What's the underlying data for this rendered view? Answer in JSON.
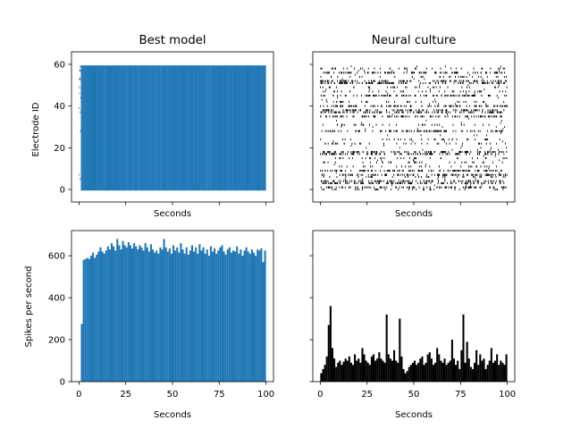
{
  "figure": {
    "background": "#ffffff",
    "model_color": "#1f77b4",
    "culture_color": "#000000"
  },
  "chart_data": [
    {
      "type": "scatter",
      "subtype": "raster",
      "title": "Best model",
      "xlabel": "Seconds",
      "ylabel": "Electrode ID",
      "xlim": [
        -4,
        104
      ],
      "ylim": [
        -6,
        66
      ],
      "xticks": [
        0,
        25,
        50,
        75,
        100
      ],
      "xtick_labels_shown": false,
      "yticks": [
        0,
        20,
        40,
        60
      ],
      "ytick_labels_shown": true,
      "electrode_range": [
        0,
        59
      ],
      "time_range": [
        0,
        100
      ],
      "active_from_seconds": 1,
      "color": "#1f77b4"
    },
    {
      "type": "scatter",
      "subtype": "raster",
      "title": "Neural culture",
      "xlabel": "Seconds",
      "ylabel": "",
      "xlim": [
        -4,
        104
      ],
      "ylim": [
        -6,
        66
      ],
      "xticks": [
        0,
        25,
        50,
        75,
        100
      ],
      "xtick_labels_shown": false,
      "yticks": [
        0,
        20,
        40,
        60
      ],
      "ytick_labels_shown": false,
      "dense_rows": [
        1,
        3,
        4,
        7,
        9,
        17,
        18,
        28,
        35,
        37,
        38,
        40,
        45,
        51,
        52,
        56
      ],
      "sparse_rows": [
        0,
        6,
        11,
        13,
        15,
        22,
        24,
        31,
        42,
        47,
        49,
        54,
        58
      ],
      "time_range": [
        0,
        100
      ],
      "color": "#000000"
    },
    {
      "type": "bar",
      "subtype": "histogram",
      "title": "",
      "xlabel": "Seconds",
      "ylabel": "Spikes per second",
      "xlim": [
        -4,
        104
      ],
      "ylim": [
        0,
        720
      ],
      "xticks": [
        0,
        25,
        50,
        75,
        100
      ],
      "yticks": [
        0,
        200,
        400,
        600
      ],
      "bin_width": 1,
      "bin_start": 0,
      "values": [
        2,
        275,
        580,
        585,
        590,
        585,
        600,
        615,
        590,
        605,
        620,
        640,
        620,
        610,
        625,
        645,
        630,
        660,
        645,
        625,
        680,
        650,
        630,
        670,
        650,
        640,
        665,
        650,
        635,
        660,
        645,
        630,
        650,
        640,
        625,
        660,
        640,
        620,
        655,
        630,
        615,
        625,
        610,
        640,
        630,
        680,
        640,
        620,
        635,
        610,
        650,
        625,
        640,
        615,
        660,
        630,
        610,
        640,
        605,
        625,
        650,
        620,
        640,
        610,
        655,
        625,
        640,
        610,
        630,
        600,
        645,
        620,
        635,
        610,
        625,
        640,
        650,
        620,
        605,
        630,
        640,
        615,
        625,
        620,
        645,
        610,
        630,
        600,
        625,
        640,
        620,
        610,
        630,
        615,
        600,
        630,
        625,
        635,
        570,
        625
      ],
      "color": "#1f77b4"
    },
    {
      "type": "bar",
      "subtype": "histogram",
      "title": "",
      "xlabel": "Seconds",
      "ylabel": "",
      "xlim": [
        -4,
        104
      ],
      "ylim": [
        0,
        720
      ],
      "xticks": [
        0,
        25,
        50,
        75,
        100
      ],
      "yticks": [
        0,
        200,
        400,
        600
      ],
      "ytick_labels_shown": false,
      "bin_width": 1,
      "bin_start": 0,
      "values": [
        40,
        60,
        80,
        120,
        270,
        360,
        160,
        110,
        70,
        90,
        100,
        80,
        95,
        110,
        100,
        120,
        90,
        80,
        130,
        100,
        110,
        90,
        160,
        130,
        100,
        90,
        80,
        120,
        130,
        100,
        110,
        140,
        110,
        100,
        90,
        320,
        130,
        110,
        100,
        150,
        100,
        90,
        300,
        120,
        60,
        40,
        50,
        70,
        80,
        90,
        100,
        80,
        90,
        110,
        120,
        80,
        90,
        130,
        140,
        110,
        80,
        90,
        160,
        130,
        100,
        90,
        110,
        80,
        90,
        100,
        200,
        110,
        80,
        100,
        60,
        150,
        320,
        90,
        190,
        110,
        70,
        60,
        90,
        150,
        80,
        130,
        100,
        110,
        60,
        80,
        100,
        160,
        90,
        100,
        130,
        80,
        100,
        90,
        80,
        130
      ],
      "color": "#000000"
    }
  ]
}
